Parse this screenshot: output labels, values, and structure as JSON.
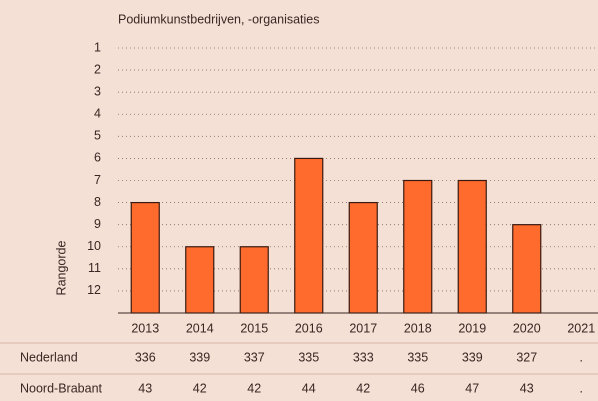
{
  "chart_data": {
    "type": "bar",
    "title": "Podiumkunstbedrijven, -organisaties",
    "y_label": "Rangorde",
    "categories": [
      "2013",
      "2014",
      "2015",
      "2016",
      "2017",
      "2018",
      "2019",
      "2020",
      "2021"
    ],
    "values": [
      8,
      10,
      10,
      6,
      8,
      7,
      7,
      9,
      null
    ],
    "color": "#ff6b2c",
    "ylim": [
      13,
      1
    ],
    "yticks": [
      1,
      2,
      3,
      4,
      5,
      6,
      7,
      8,
      9,
      10,
      11,
      12
    ],
    "grid": true,
    "table": {
      "rows": [
        {
          "name": "Nederland",
          "values": [
            336,
            339,
            337,
            335,
            333,
            335,
            339,
            327,
            "."
          ]
        },
        {
          "name": "Noord-Brabant",
          "values": [
            43,
            42,
            42,
            44,
            42,
            46,
            47,
            43,
            "."
          ]
        }
      ]
    }
  }
}
